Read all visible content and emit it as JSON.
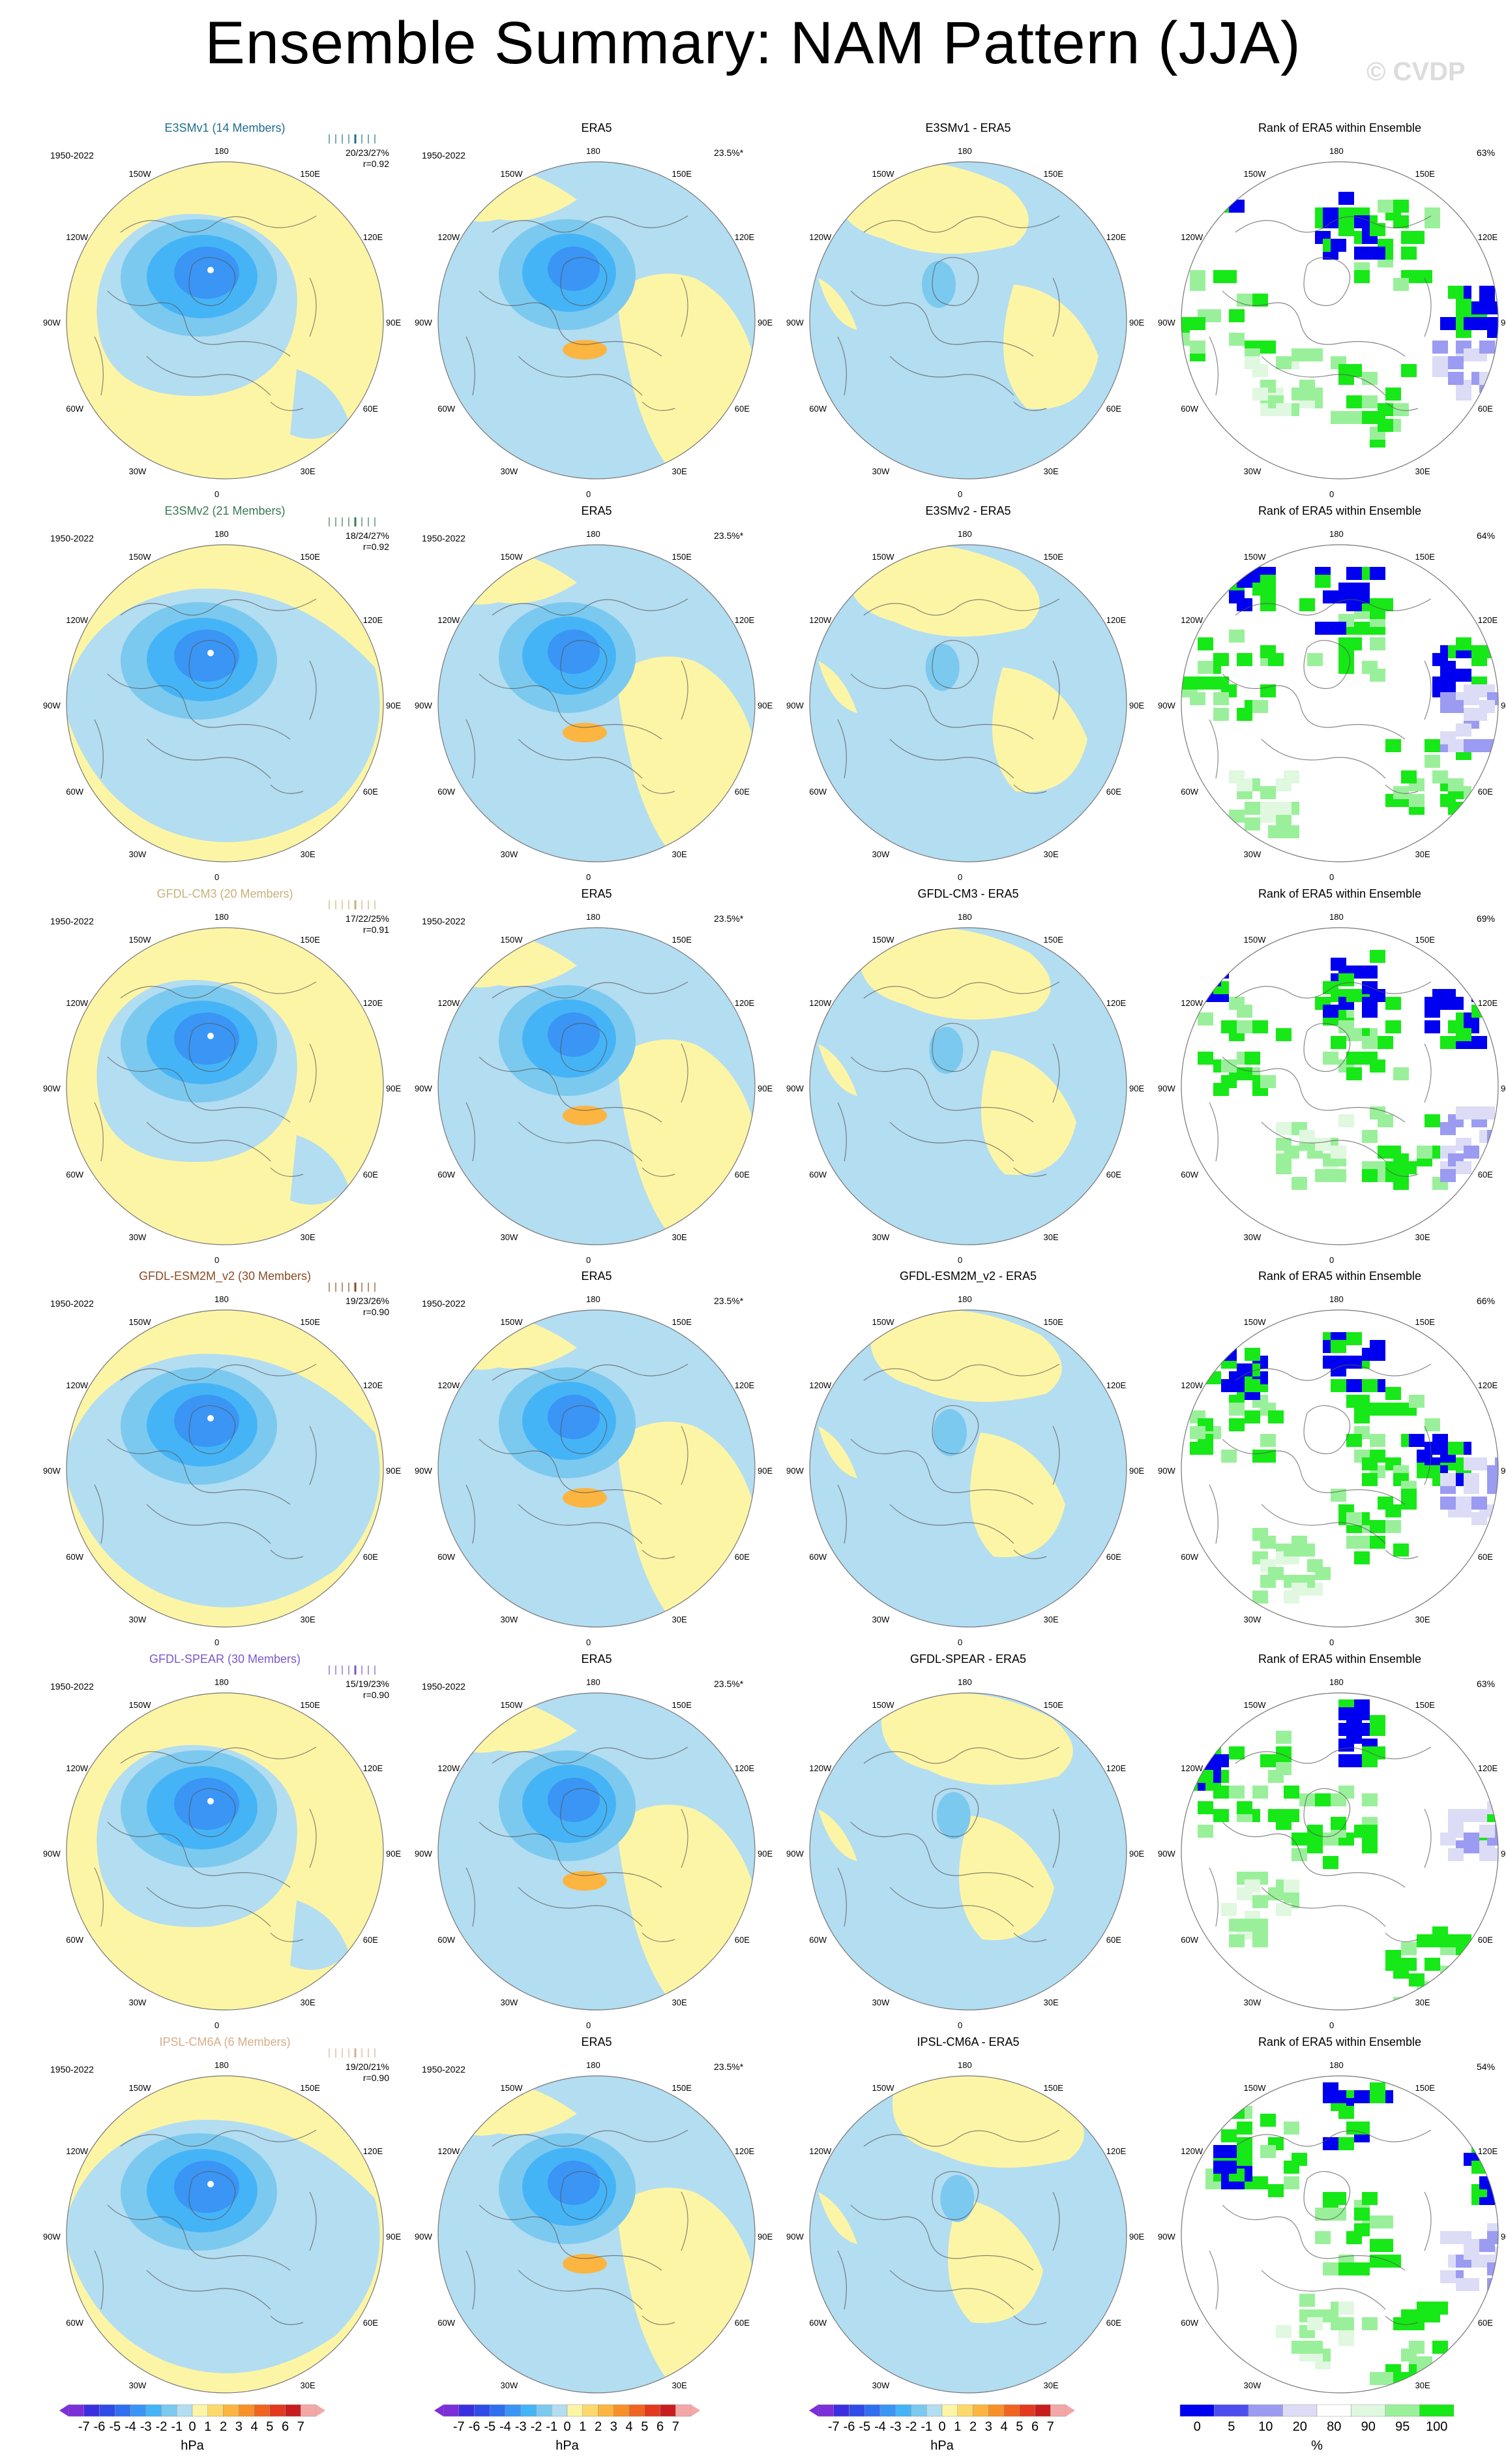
{
  "title": "Ensemble Summary: NAM Pattern (JJA)",
  "watermark": "© CVDP",
  "period": "1950-2022",
  "era5_variance": "23.5%*",
  "rows": [
    {
      "model": "E3SMv1 (14 Members)",
      "model_short": "E3SMv1",
      "color": "#1f6f8b",
      "stats": "20/23/27%",
      "corr": "r=0.92",
      "diff_title": "E3SMv1 - ERA5",
      "rank_pct": "63%"
    },
    {
      "model": "E3SMv2 (21 Members)",
      "model_short": "E3SMv2",
      "color": "#3a7a55",
      "stats": "18/24/27%",
      "corr": "r=0.92",
      "diff_title": "E3SMv2 - ERA5",
      "rank_pct": "64%"
    },
    {
      "model": "GFDL-CM3 (20 Members)",
      "model_short": "GFDL-CM3",
      "color": "#c8b27a",
      "stats": "17/22/25%",
      "corr": "r=0.91",
      "diff_title": "GFDL-CM3 - ERA5",
      "rank_pct": "69%"
    },
    {
      "model": "GFDL-ESM2M_v2 (30 Members)",
      "model_short": "GFDL-ESM2M_v2",
      "color": "#8b4a25",
      "stats": "19/23/26%",
      "corr": "r=0.90",
      "diff_title": "GFDL-ESM2M_v2 - ERA5",
      "rank_pct": "66%"
    },
    {
      "model": "GFDL-SPEAR (30 Members)",
      "model_short": "GFDL-SPEAR",
      "color": "#7b57c8",
      "stats": "15/19/23%",
      "corr": "r=0.90",
      "diff_title": "GFDL-SPEAR - ERA5",
      "rank_pct": "63%"
    },
    {
      "model": "IPSL-CM6A (6 Members)",
      "model_short": "IPSL-CM6A",
      "color": "#d8ad8a",
      "stats": "19/20/21%",
      "corr": "r=0.90",
      "diff_title": "IPSL-CM6A - ERA5",
      "rank_pct": "54%"
    }
  ],
  "panel_titles": {
    "obs": "ERA5",
    "rank": "Rank of ERA5 within Ensemble"
  },
  "lon_labels": [
    "180",
    "150E",
    "120E",
    "90E",
    "60E",
    "30E",
    "0",
    "30W",
    "60W",
    "90W",
    "120W",
    "150W"
  ],
  "colorbar_hpa": {
    "ticks": [
      "-7",
      "-6",
      "-5",
      "-4",
      "-3",
      "-2",
      "-1",
      "0",
      "1",
      "2",
      "3",
      "4",
      "5",
      "6",
      "7"
    ],
    "unit": "hPa",
    "colors": [
      "#7b2fd8",
      "#3a2fe0",
      "#2f4ce8",
      "#2f6ff0",
      "#3a95f5",
      "#45b4f7",
      "#7cc9ef",
      "#b3ddf1",
      "#fdf5a6",
      "#fcd96a",
      "#fbb540",
      "#f79127",
      "#f06420",
      "#e33a1f",
      "#c81e1e",
      "#f3a7a7"
    ]
  },
  "colorbar_rank": {
    "ticks": [
      "0",
      "5",
      "10",
      "20",
      "80",
      "90",
      "95",
      "100"
    ],
    "unit": "%",
    "colors": [
      "#0000f0",
      "#4d4df0",
      "#9b9bf2",
      "#dcdcf6",
      "#ffffff",
      "#dff8df",
      "#9af09a",
      "#17e817"
    ]
  }
}
